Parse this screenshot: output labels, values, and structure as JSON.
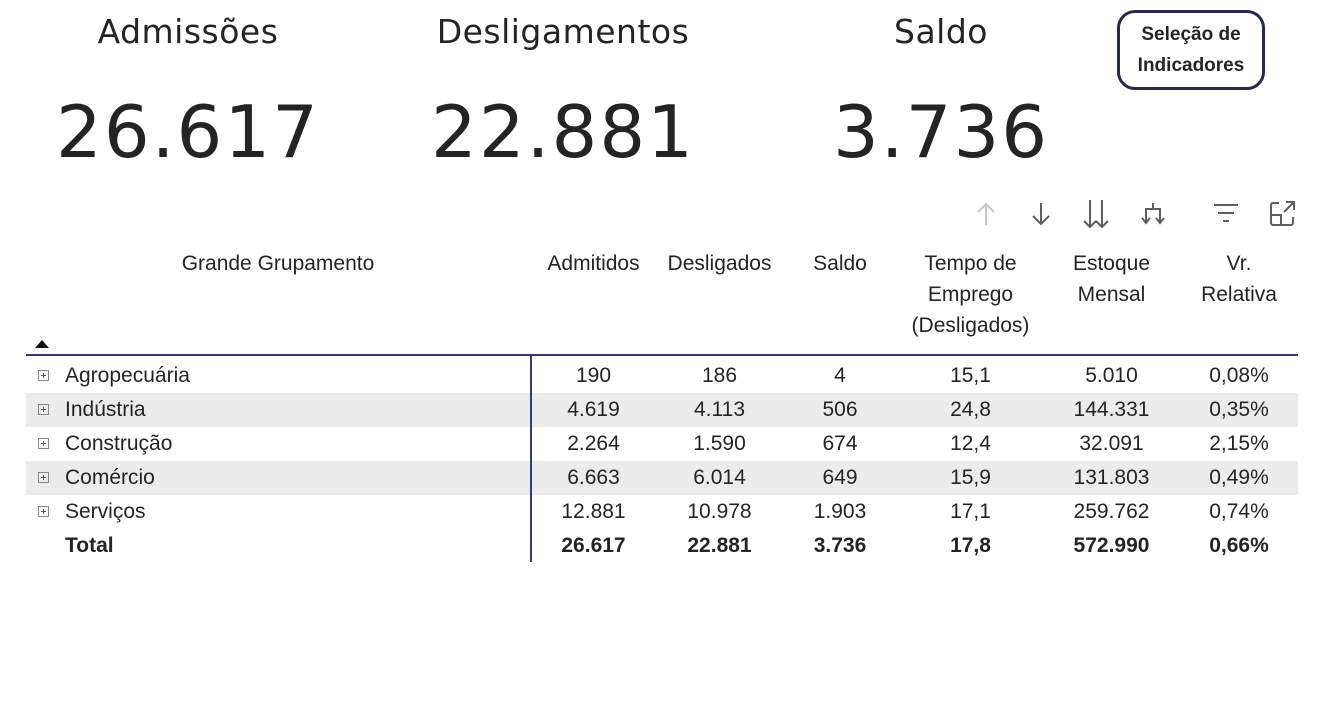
{
  "kpis": [
    {
      "label": "Admissões",
      "value": "26.617"
    },
    {
      "label": "Desligamentos",
      "value": "22.881"
    },
    {
      "label": "Saldo",
      "value": "3.736"
    }
  ],
  "selection_button": {
    "line1": "Seleção de",
    "line2": "Indicadores"
  },
  "toolbar": {
    "icons": [
      "arrow-up-icon",
      "arrow-down-icon",
      "double-arrow-down-icon",
      "expand-hierarchy-icon",
      "filter-icon",
      "focus-mode-icon"
    ]
  },
  "table": {
    "row_header": "Grande Grupamento",
    "columns": [
      [
        "Admitidos"
      ],
      [
        "Desligados"
      ],
      [
        "Saldo"
      ],
      [
        "Tempo de",
        "Emprego",
        "(Desligados)"
      ],
      [
        "Estoque",
        "Mensal"
      ],
      [
        "Vr.",
        "Relativa"
      ]
    ],
    "rows": [
      {
        "name": "Agropecuária",
        "values": [
          "190",
          "186",
          "4",
          "15,1",
          "5.010",
          "0,08%"
        ]
      },
      {
        "name": "Indústria",
        "values": [
          "4.619",
          "4.113",
          "506",
          "24,8",
          "144.331",
          "0,35%"
        ]
      },
      {
        "name": "Construção",
        "values": [
          "2.264",
          "1.590",
          "674",
          "12,4",
          "32.091",
          "2,15%"
        ]
      },
      {
        "name": "Comércio",
        "values": [
          "6.663",
          "6.014",
          "649",
          "15,9",
          "131.803",
          "0,49%"
        ]
      },
      {
        "name": "Serviços",
        "values": [
          "12.881",
          "10.978",
          "1.903",
          "17,1",
          "259.762",
          "0,74%"
        ]
      }
    ],
    "total": {
      "name": "Total",
      "values": [
        "26.617",
        "22.881",
        "3.736",
        "17,8",
        "572.990",
        "0,66%"
      ]
    }
  },
  "colors": {
    "accent_border": "#363a70",
    "row_shade": "#ececec",
    "text": "#252423"
  }
}
